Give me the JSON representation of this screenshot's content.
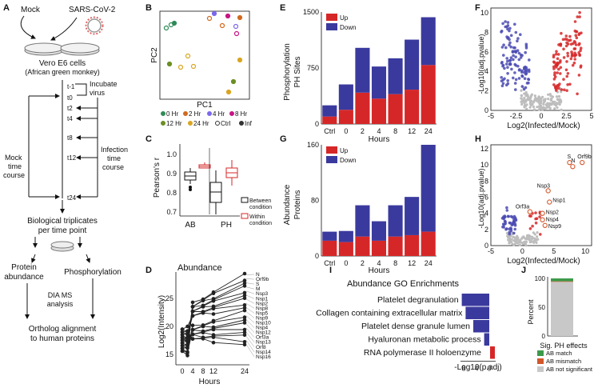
{
  "panels": {
    "a": {
      "label": "A",
      "mock": "Mock",
      "sars": "SARS-CoV-2",
      "cells": "Vero E6 cells",
      "cells_sub": "(African green monkey)",
      "timepoints": [
        "t-1",
        "t0",
        "t2",
        "t4",
        "t8",
        "t12",
        "t24"
      ],
      "incubate": [
        "Incubate",
        "virus"
      ],
      "mock_course": [
        "Mock",
        "time",
        "course"
      ],
      "infection_course": [
        "Infection",
        "time",
        "course"
      ],
      "triplicates": [
        "Biological triplicates",
        "per time point"
      ],
      "protein_abundance": [
        "Protein",
        "abundance"
      ],
      "phosphorylation": "Phosphorylation",
      "dia": [
        "DIA MS",
        "analysis"
      ],
      "ortholog": [
        "Ortholog alignment",
        "to human proteins"
      ]
    },
    "b": {
      "label": "B",
      "xlabel": "PC1",
      "ylabel": "PC2",
      "legend": [
        {
          "label": "0 Hr",
          "color": "#2e8b57"
        },
        {
          "label": "2 Hr",
          "color": "#d2691e"
        },
        {
          "label": "4 Hr",
          "color": "#7b68ee"
        },
        {
          "label": "8 Hr",
          "color": "#c71585"
        },
        {
          "label": "12 Hr",
          "color": "#6b8e23"
        },
        {
          "label": "24 Hr",
          "color": "#daa520"
        },
        {
          "label": "Ctrl",
          "color": "#333333",
          "open": true
        },
        {
          "label": "Inf",
          "color": "#333333",
          "open": false
        }
      ]
    },
    "c": {
      "label": "C",
      "ylabel": "Pearson's r",
      "categories": [
        "AB",
        "PH"
      ],
      "yticks": [
        "1.0",
        "0.9",
        "0.8",
        "0.7"
      ],
      "legend": [
        "Between",
        "condition",
        "Within",
        "condition"
      ]
    },
    "d": {
      "label": "D",
      "title": "Abundance",
      "ylabel": "Log2(Intensity)",
      "xlabel": "Hours",
      "xticks": [
        "0",
        "4",
        "8",
        "12",
        "24"
      ],
      "yticks": [
        "15",
        "20",
        "25"
      ],
      "proteins": [
        "N",
        "Orf9b",
        "S",
        "M",
        "Nsp3",
        "Nsp1",
        "Nsp2",
        "Nsp8",
        "Nsp5",
        "Nsp9",
        "Nsp10",
        "Nsp4",
        "Nsp12",
        "Orf3a",
        "Nsp13",
        "Orf8",
        "Nsp14",
        "Nsp16"
      ]
    },
    "e": {
      "label": "E",
      "ylabel1": "Phosphorylation",
      "ylabel2": "PH Sites",
      "xlabel": "Hours",
      "yticks": [
        "0",
        "750",
        "1500"
      ]
    },
    "f": {
      "label": "F",
      "ylabel": "-Log10(adj.pvalue)",
      "xlabel": "Log2(Infected/Mock)",
      "xticks": [
        "-5",
        "-2.5",
        "0",
        "2.5",
        "5"
      ],
      "yticks": [
        "0",
        "2",
        "4",
        "6",
        "8",
        "10"
      ]
    },
    "g": {
      "label": "G",
      "ylabel1": "Abundance",
      "ylabel2": "Proteins",
      "xlabel": "Hours",
      "yticks": [
        "0",
        "80",
        "160"
      ]
    },
    "h": {
      "label": "H",
      "ylabel": "-Log10(adj.pvalue)",
      "xlabel": "Log2(Infected/Mock)",
      "xticks": [
        "-5",
        "0",
        "5",
        "10"
      ],
      "yticks": [
        "0",
        "2",
        "4",
        "6",
        "8",
        "10",
        "12"
      ],
      "annotations": [
        "S",
        "Orf9b",
        "N",
        "Nsp3",
        "Nsp1",
        "Orf3a",
        "Nsp2",
        "Nsp4",
        "Nsp9"
      ]
    },
    "i": {
      "label": "I",
      "title": "Abundance GO Enrichments",
      "xlabel": "-Log10(p.adj)",
      "xticks": [
        "8",
        "4",
        "0"
      ]
    },
    "j": {
      "label": "J",
      "ylabel": "Percent",
      "xlabel": "Sig. PH effects",
      "yticks": [
        "0",
        "50",
        "100"
      ],
      "legend": [
        {
          "label": "AB match",
          "color": "#3c9a4a"
        },
        {
          "label": "AB mismatch",
          "color": "#d2572a"
        },
        {
          "label": "AB not significant",
          "color": "#c8c8c8"
        }
      ]
    }
  },
  "colors": {
    "up": "#d62728",
    "down": "#3a3a9e",
    "gray": "#bdbdbd"
  },
  "chart_data": [
    {
      "type": "bar",
      "panel": "E",
      "categories": [
        "Ctrl",
        "0",
        "2",
        "4",
        "8",
        "12",
        "24"
      ],
      "series": [
        {
          "name": "Up",
          "values": [
            100,
            190,
            420,
            340,
            400,
            460,
            790
          ]
        },
        {
          "name": "Down",
          "values": [
            150,
            340,
            600,
            430,
            480,
            670,
            640
          ]
        }
      ],
      "ylim": [
        0,
        1500
      ],
      "stacked": true
    },
    {
      "type": "bar",
      "panel": "G",
      "categories": [
        "Ctrl",
        "0",
        "2",
        "4",
        "8",
        "12",
        "24"
      ],
      "series": [
        {
          "name": "Up",
          "values": [
            22,
            20,
            28,
            22,
            28,
            30,
            35
          ]
        },
        {
          "name": "Down",
          "values": [
            13,
            16,
            45,
            28,
            45,
            55,
            125
          ]
        }
      ],
      "ylim": [
        0,
        160
      ],
      "stacked": true
    },
    {
      "type": "bar",
      "panel": "I",
      "orientation": "horizontal",
      "categories": [
        "Platelet degranulation",
        "Collagen containing extracellular matrix",
        "Platelet dense granule lumen",
        "Hyaluronan metabolic process",
        "RNA polymerase II holoenzyme"
      ],
      "values": [
        8.6,
        7.4,
        5.0,
        1.6,
        1.5
      ],
      "directions": [
        "down",
        "down",
        "down",
        "down",
        "up"
      ]
    },
    {
      "type": "bar",
      "panel": "J",
      "categories": [
        "Sig. PH effects"
      ],
      "series": [
        {
          "name": "AB not significant",
          "values": [
            94
          ]
        },
        {
          "name": "AB mismatch",
          "values": [
            1
          ]
        },
        {
          "name": "AB match",
          "values": [
            5
          ]
        }
      ],
      "ylim": [
        0,
        100
      ],
      "stacked": true
    }
  ]
}
